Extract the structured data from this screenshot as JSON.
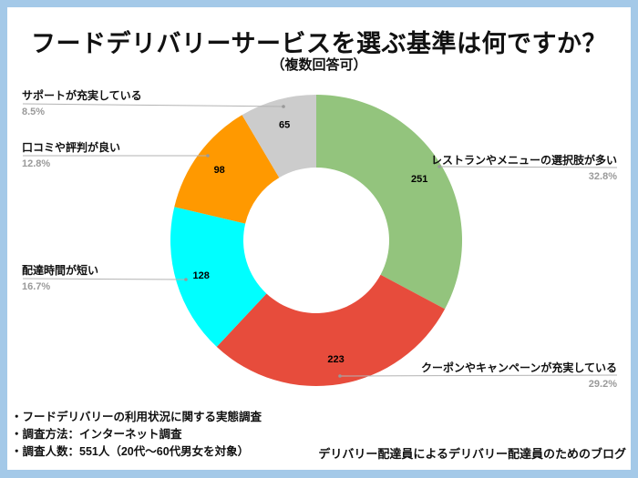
{
  "frame": {
    "border_color": "#a4c9e8",
    "card_color": "#ffffff"
  },
  "header": {
    "title": "フードデリバリーサービスを選ぶ基準は何ですか？",
    "subtitle": "（複数回答可）"
  },
  "chart_data": {
    "type": "pie",
    "donut": true,
    "title": "フードデリバリーサービスを選ぶ基準は何ですか？（複数回答可）",
    "start_angle_deg": 0,
    "direction": "clockwise",
    "inner_radius_ratio": 0.5,
    "segments": [
      {
        "label": "レストランやメニューの選択肢が多い",
        "value": 251,
        "pct": "32.8%",
        "color": "#93c47d"
      },
      {
        "label": "クーポンやキャンペーンが充実している",
        "value": 223,
        "pct": "29.2%",
        "color": "#e74c3c"
      },
      {
        "label": "配達時間が短い",
        "value": 128,
        "pct": "16.7%",
        "color": "#00ffff"
      },
      {
        "label": "口コミや評判が良い",
        "value": 98,
        "pct": "12.8%",
        "color": "#ff9900"
      },
      {
        "label": "サポートが充実している",
        "value": 65,
        "pct": "8.5%",
        "color": "#cccccc"
      }
    ]
  },
  "footer": {
    "notes": [
      "・フードデリバリーの利用状況に関する実態調査",
      "・調査方法：インターネット調査",
      "・調査人数：551人（20代～60代男女を対象）"
    ],
    "credit": "デリバリー配達員によるデリバリー配達員のためのブログ"
  }
}
